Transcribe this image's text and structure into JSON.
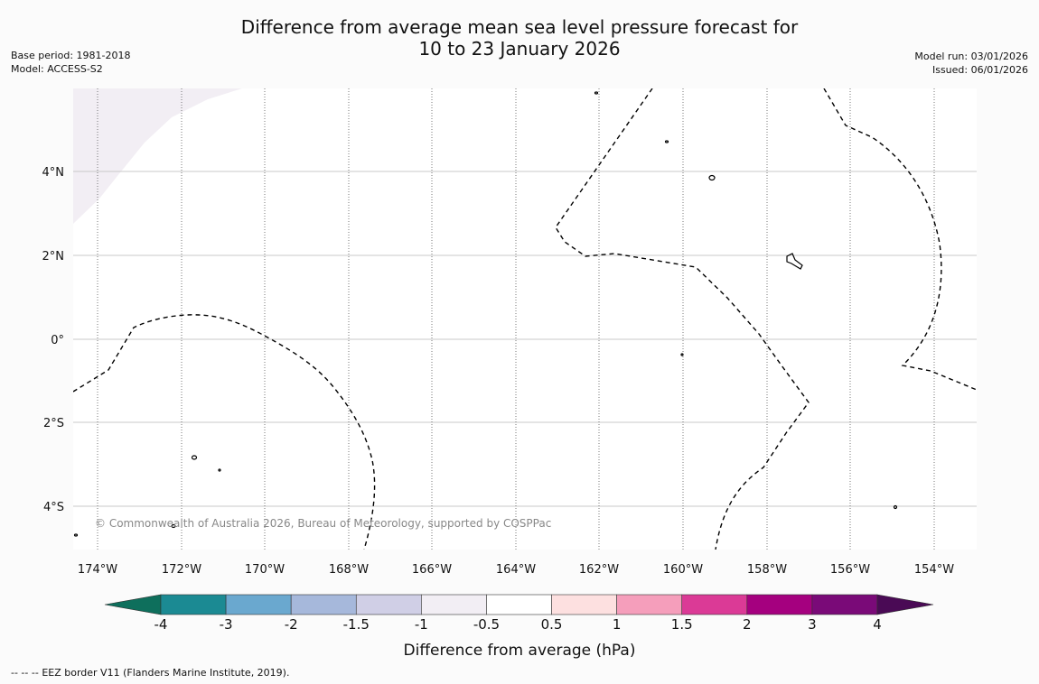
{
  "title": {
    "line1": "Difference from average mean sea level pressure forecast for",
    "line2": "10 to 23 January 2026"
  },
  "meta_left": {
    "base_period": "Base period: 1981-2018",
    "model": "Model: ACCESS-S2"
  },
  "meta_right": {
    "model_run": "Model run: 03/01/2026",
    "issued": "Issued: 06/01/2026"
  },
  "map": {
    "lat_labels": [
      "4°N",
      "2°N",
      "0°",
      "2°S",
      "4°S"
    ],
    "lon_labels": [
      "174°W",
      "172°W",
      "170°W",
      "168°W",
      "166°W",
      "164°W",
      "162°W",
      "160°W",
      "158°W",
      "156°W",
      "154°W"
    ],
    "copyright": "© Commonwealth of Australia 2026, Bureau of Meteorology, supported by COSPPac",
    "anomaly_fill_color": "#f2eef4"
  },
  "colorbar": {
    "label": "Difference from average (hPa)",
    "ticks": [
      "-4",
      "-3",
      "-2",
      "-1.5",
      "-1",
      "-0.5",
      "0.5",
      "1",
      "1.5",
      "2",
      "3",
      "4"
    ],
    "under_color": "#0e6f5c",
    "over_color": "#4a0a55",
    "colors": [
      "#1b8a93",
      "#6aa8cf",
      "#a6b8db",
      "#d0cfe6",
      "#f2eef4",
      "#ffffff",
      "#fde0e0",
      "#f59ebb",
      "#db3a96",
      "#a5007f",
      "#7a0a78"
    ]
  },
  "footer": {
    "legend_symbol": "--  --  --",
    "text": "EEZ border V11 (Flanders Marine Institute, 2019)."
  }
}
